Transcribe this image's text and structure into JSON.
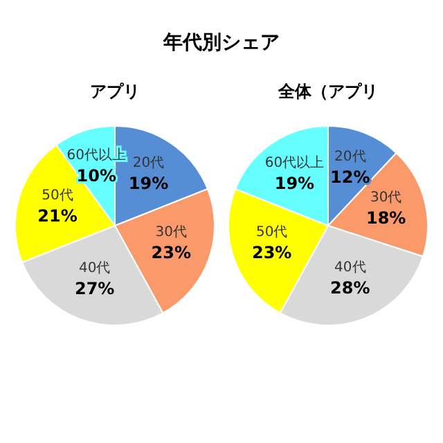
{
  "chart_data": [
    {
      "type": "pie",
      "title": "年代別シェア",
      "subtitle": "アプリ",
      "categories": [
        "20代",
        "30代",
        "40代",
        "50代",
        "60代以上"
      ],
      "values": [
        19,
        23,
        27,
        21,
        10
      ],
      "value_labels": [
        "19%",
        "23%",
        "27%",
        "21%",
        "10%"
      ],
      "colors": [
        "#558ed5",
        "#fa9a6a",
        "#d9d9d9",
        "#ffff00",
        "#66ffff"
      ],
      "legend": false
    },
    {
      "type": "pie",
      "subtitle": "全体（アプリ",
      "categories": [
        "20代",
        "30代",
        "40代",
        "50代",
        "60代以上"
      ],
      "values": [
        12,
        18,
        28,
        23,
        19
      ],
      "value_labels": [
        "12%",
        "18%",
        "28%",
        "23%",
        "19%"
      ],
      "colors": [
        "#558ed5",
        "#fa9a6a",
        "#d9d9d9",
        "#ffff00",
        "#66ffff"
      ],
      "legend": false
    }
  ]
}
